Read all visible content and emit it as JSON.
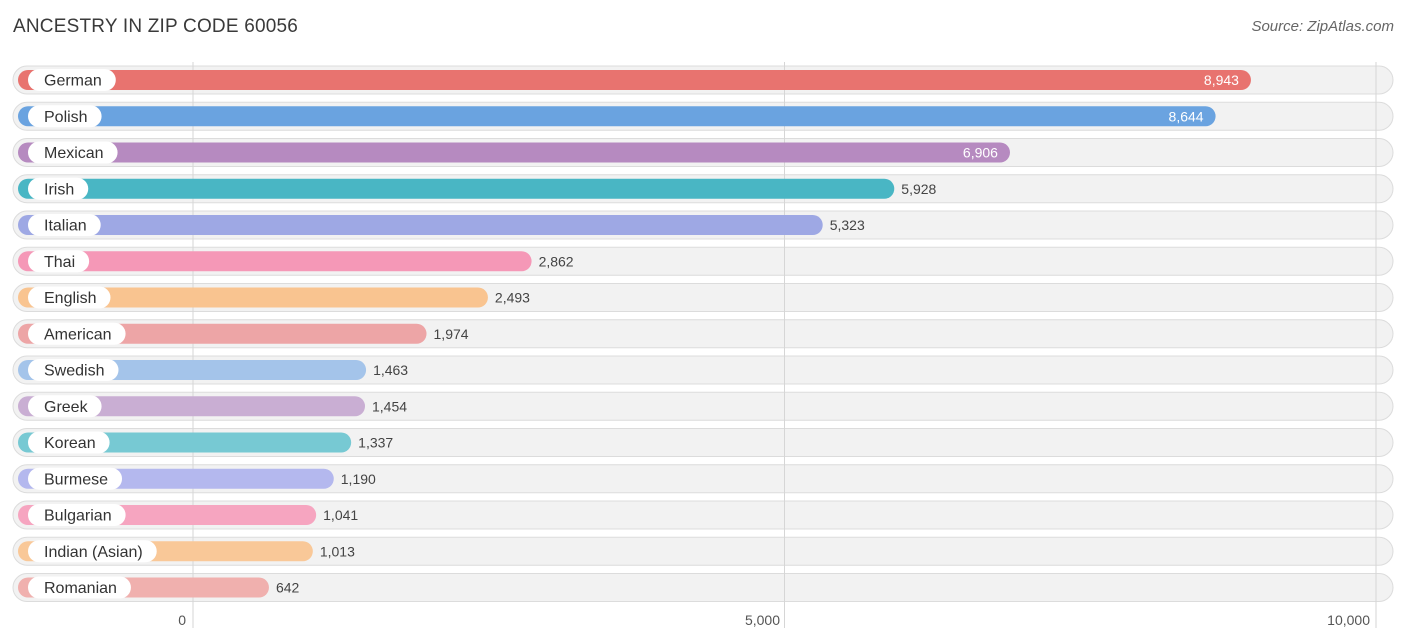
{
  "header": {
    "title": "ANCESTRY IN ZIP CODE 60056",
    "source": "Source: ZipAtlas.com"
  },
  "chart_data": {
    "type": "bar",
    "orientation": "horizontal",
    "title": "ANCESTRY IN ZIP CODE 60056",
    "xlim": [
      0,
      10000
    ],
    "grid": true,
    "categories": [
      "German",
      "Polish",
      "Mexican",
      "Irish",
      "Italian",
      "Thai",
      "English",
      "American",
      "Swedish",
      "Greek",
      "Korean",
      "Burmese",
      "Bulgarian",
      "Indian (Asian)",
      "Romanian"
    ],
    "values": [
      8943,
      8644,
      6906,
      5928,
      5323,
      2862,
      2493,
      1974,
      1463,
      1454,
      1337,
      1190,
      1041,
      1013,
      642
    ],
    "value_labels": [
      "8,943",
      "8,644",
      "6,906",
      "5,928",
      "5,323",
      "2,862",
      "2,493",
      "1,974",
      "1,463",
      "1,454",
      "1,337",
      "1,190",
      "1,041",
      "1,013",
      "642"
    ],
    "colors": [
      "#e8736f",
      "#6aa3e0",
      "#b68ac0",
      "#49b6c4",
      "#9ea8e4",
      "#f598b7",
      "#f9c490",
      "#eda5a6",
      "#a4c4ea",
      "#c9aed3",
      "#77c9d3",
      "#b4b8ee",
      "#f6a5c0",
      "#f9c898",
      "#f0b0ae"
    ],
    "x_ticks": [
      0,
      5000,
      10000
    ],
    "x_tick_labels": [
      "0",
      "5,000",
      "10,000"
    ]
  }
}
